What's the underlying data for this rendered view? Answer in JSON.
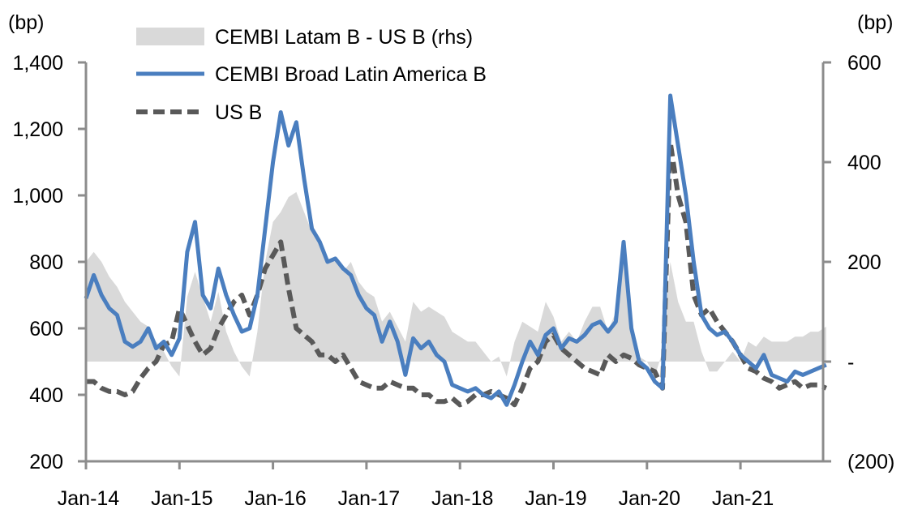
{
  "chart_data": {
    "type": "line",
    "title": "",
    "left_axis": {
      "label": "(bp)",
      "ylim": [
        200,
        1400
      ],
      "ticks": [
        200,
        400,
        600,
        800,
        1000,
        1200,
        1400
      ],
      "tick_labels": [
        "200",
        "400",
        "600",
        "800",
        "1,000",
        "1,200",
        "1,400"
      ]
    },
    "right_axis": {
      "label": "(bp)",
      "ylim": [
        -200,
        600
      ],
      "ticks": [
        -200,
        0,
        200,
        400,
        600
      ],
      "tick_labels": [
        "(200)",
        "-",
        "200",
        "400",
        "600"
      ]
    },
    "x_axis": {
      "start": "Jan-14",
      "end": "Oct-21",
      "tick_labels": [
        "Jan-14",
        "Jan-15",
        "Jan-16",
        "Jan-17",
        "Jan-18",
        "Jan-19",
        "Jan-20",
        "Jan-21"
      ],
      "tick_month_index": [
        0,
        12,
        24,
        36,
        48,
        60,
        72,
        84
      ]
    },
    "legend": {
      "placement": "top-left",
      "entries": [
        {
          "name": "CEMBI Latam B - US B (rhs)",
          "style": "area",
          "color": "#d9d9d9"
        },
        {
          "name": "CEMBI Broad Latin America B",
          "style": "solid",
          "color": "#4a7ebf"
        },
        {
          "name": "US B",
          "style": "dashed",
          "color": "#595959"
        }
      ]
    },
    "x": [
      "Jan-14",
      "Feb-14",
      "Mar-14",
      "Apr-14",
      "May-14",
      "Jun-14",
      "Jul-14",
      "Aug-14",
      "Sep-14",
      "Oct-14",
      "Nov-14",
      "Dec-14",
      "Jan-15",
      "Feb-15",
      "Mar-15",
      "Apr-15",
      "May-15",
      "Jun-15",
      "Jul-15",
      "Aug-15",
      "Sep-15",
      "Oct-15",
      "Nov-15",
      "Dec-15",
      "Jan-16",
      "Feb-16",
      "Mar-16",
      "Apr-16",
      "May-16",
      "Jun-16",
      "Jul-16",
      "Aug-16",
      "Sep-16",
      "Oct-16",
      "Nov-16",
      "Dec-16",
      "Jan-17",
      "Feb-17",
      "Mar-17",
      "Apr-17",
      "May-17",
      "Jun-17",
      "Jul-17",
      "Aug-17",
      "Sep-17",
      "Oct-17",
      "Nov-17",
      "Dec-17",
      "Jan-18",
      "Feb-18",
      "Mar-18",
      "Apr-18",
      "May-18",
      "Jun-18",
      "Jul-18",
      "Aug-18",
      "Sep-18",
      "Oct-18",
      "Nov-18",
      "Dec-18",
      "Jan-19",
      "Feb-19",
      "Mar-19",
      "Apr-19",
      "May-19",
      "Jun-19",
      "Jul-19",
      "Aug-19",
      "Sep-19",
      "Oct-19",
      "Nov-19",
      "Dec-19",
      "Jan-20",
      "Feb-20",
      "Mar-20",
      "Apr-20",
      "May-20",
      "Jun-20",
      "Jul-20",
      "Aug-20",
      "Sep-20",
      "Oct-20",
      "Nov-20",
      "Dec-20",
      "Jan-21",
      "Feb-21",
      "Mar-21",
      "Apr-21",
      "May-21",
      "Jun-21",
      "Jul-21",
      "Aug-21",
      "Sep-21",
      "Oct-21"
    ],
    "series": [
      {
        "name": "CEMBI Broad Latin America B",
        "axis": "left",
        "values": [
          690,
          760,
          700,
          660,
          640,
          560,
          545,
          560,
          600,
          540,
          560,
          520,
          570,
          830,
          920,
          700,
          660,
          780,
          700,
          640,
          590,
          600,
          700,
          900,
          1100,
          1250,
          1150,
          1220,
          1050,
          900,
          860,
          800,
          810,
          780,
          760,
          700,
          660,
          640,
          560,
          620,
          560,
          460,
          570,
          540,
          560,
          520,
          500,
          430,
          420,
          410,
          420,
          400,
          390,
          410,
          370,
          430,
          500,
          560,
          520,
          580,
          600,
          540,
          570,
          560,
          580,
          610,
          620,
          590,
          620,
          860,
          600,
          500,
          480,
          440,
          420,
          1300,
          1150,
          1000,
          800,
          640,
          600,
          580,
          590,
          560,
          520,
          500,
          480,
          520,
          460,
          450,
          440,
          470,
          460,
          470,
          480,
          490
        ]
      },
      {
        "name": "US B",
        "axis": "left",
        "values": [
          440,
          440,
          420,
          410,
          410,
          400,
          410,
          450,
          480,
          500,
          550,
          560,
          660,
          610,
          560,
          520,
          540,
          600,
          640,
          680,
          700,
          640,
          700,
          780,
          820,
          860,
          720,
          600,
          580,
          560,
          520,
          520,
          500,
          520,
          480,
          440,
          430,
          420,
          420,
          440,
          430,
          420,
          420,
          400,
          400,
          380,
          380,
          390,
          370,
          380,
          400,
          400,
          410,
          400,
          390,
          370,
          420,
          480,
          500,
          560,
          580,
          540,
          520,
          500,
          480,
          470,
          460,
          520,
          500,
          520,
          510,
          490,
          480,
          470,
          420,
          1160,
          1000,
          920,
          700,
          640,
          660,
          620,
          590,
          560,
          520,
          480,
          470,
          450,
          440,
          420,
          430,
          440,
          420,
          430,
          430,
          420
        ]
      },
      {
        "name": "CEMBI Latam B - US B (rhs)",
        "axis": "right",
        "values": [
          200,
          220,
          200,
          170,
          150,
          120,
          100,
          80,
          70,
          40,
          20,
          -10,
          -30,
          130,
          180,
          130,
          80,
          140,
          60,
          20,
          -10,
          -30,
          60,
          200,
          280,
          300,
          330,
          340,
          300,
          260,
          240,
          200,
          210,
          180,
          200,
          160,
          140,
          130,
          80,
          100,
          70,
          40,
          120,
          100,
          110,
          100,
          90,
          60,
          50,
          40,
          40,
          20,
          0,
          10,
          -30,
          40,
          80,
          70,
          60,
          120,
          90,
          40,
          60,
          40,
          80,
          110,
          110,
          60,
          100,
          240,
          60,
          10,
          0,
          -30,
          20,
          200,
          120,
          80,
          80,
          20,
          -20,
          -20,
          0,
          20,
          0,
          40,
          30,
          50,
          40,
          40,
          40,
          50,
          50,
          60,
          60,
          70
        ]
      }
    ],
    "grid": false
  }
}
